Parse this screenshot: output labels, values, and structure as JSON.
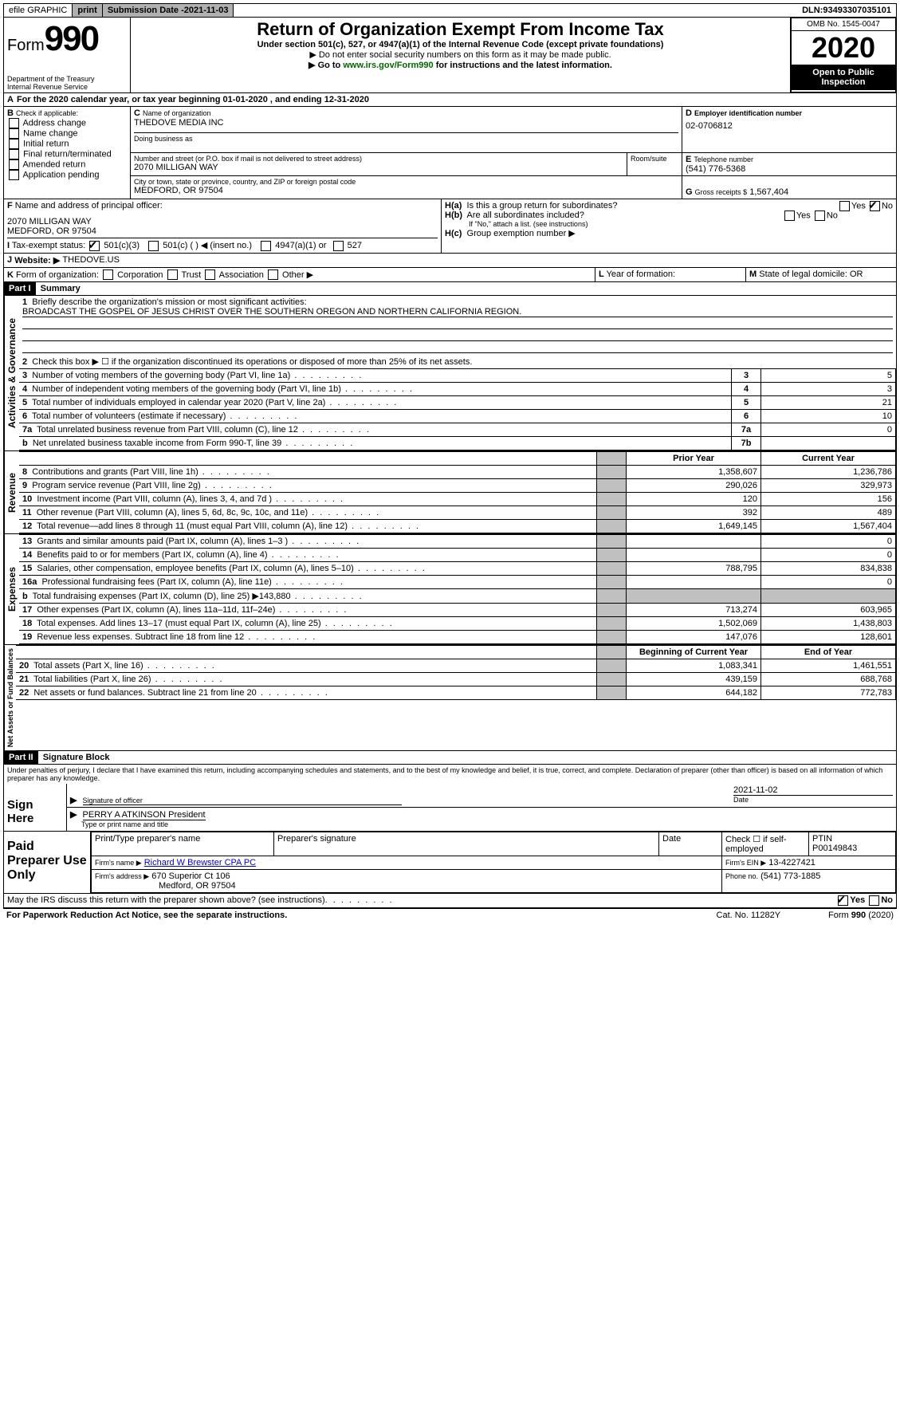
{
  "topbar": {
    "efile": "efile GRAPHIC",
    "print": "print",
    "subdate_label": "Submission Date - ",
    "subdate": "2021-11-03",
    "dln_label": "DLN: ",
    "dln": "93493307035101"
  },
  "header": {
    "form_word": "Form",
    "form_num": "990",
    "dept": "Department of the Treasury",
    "irs": "Internal Revenue Service",
    "title": "Return of Organization Exempt From Income Tax",
    "sub1": "Under section 501(c), 527, or 4947(a)(1) of the Internal Revenue Code (except private foundations)",
    "sub2": "▶ Do not enter social security numbers on this form as it may be made public.",
    "sub3_pre": "▶ Go to ",
    "sub3_link": "www.irs.gov/Form990",
    "sub3_post": " for instructions and the latest information.",
    "omb": "OMB No. 1545-0047",
    "year": "2020",
    "open": "Open to Public Inspection"
  },
  "A": {
    "line": "For the 2020 calendar year, or tax year beginning 01-01-2020    , and ending 12-31-2020"
  },
  "B": {
    "label": "Check if applicable:",
    "items": [
      "Address change",
      "Name change",
      "Initial return",
      "Final return/terminated",
      "Amended return",
      "Application pending"
    ]
  },
  "C": {
    "name_label": "Name of organization",
    "name": "THEDOVE MEDIA INC",
    "dba_label": "Doing business as",
    "addr_label": "Number and street (or P.O. box if mail is not delivered to street address)",
    "room_label": "Room/suite",
    "addr": "2070 MILLIGAN WAY",
    "city_label": "City or town, state or province, country, and ZIP or foreign postal code",
    "city": "MEDFORD, OR  97504"
  },
  "D": {
    "label": "Employer identification number",
    "val": "02-0706812"
  },
  "E": {
    "label": "Telephone number",
    "val": "(541) 776-5368"
  },
  "G": {
    "label": "Gross receipts $",
    "val": "1,567,404"
  },
  "F": {
    "label": "Name and address of principal officer:",
    "addr1": "2070 MILLIGAN WAY",
    "addr2": "MEDFORD, OR  97504"
  },
  "H": {
    "a": "Is this a group return for subordinates?",
    "b": "Are all subordinates included?",
    "b_note": "If \"No,\" attach a list. (see instructions)",
    "c": "Group exemption number ▶",
    "yes": "Yes",
    "no": "No"
  },
  "I": {
    "label": "Tax-exempt status:",
    "opt1": "501(c)(3)",
    "opt2": "501(c) (  )  ◀ (insert no.)",
    "opt3": "4947(a)(1) or",
    "opt4": "527"
  },
  "J": {
    "label": "Website: ▶",
    "val": "THEDOVE.US"
  },
  "K": {
    "label": "Form of organization:",
    "opts": [
      "Corporation",
      "Trust",
      "Association",
      "Other ▶"
    ]
  },
  "L": {
    "label": "Year of formation:"
  },
  "M": {
    "label": "State of legal domicile: ",
    "val": "OR"
  },
  "partI": {
    "head": "Part I",
    "title": "Summary",
    "line1_label": "Briefly describe the organization's mission or most significant activities:",
    "line1_val": "BROADCAST THE GOSPEL OF JESUS CHRIST OVER THE SOUTHERN OREGON AND NORTHERN CALIFORNIA REGION.",
    "line2": "Check this box ▶ ☐  if the organization discontinued its operations or disposed of more than 25% of its net assets.",
    "governance_rows": [
      {
        "n": "3",
        "text": "Number of voting members of the governing body (Part VI, line 1a)",
        "box": "3",
        "val": "5"
      },
      {
        "n": "4",
        "text": "Number of independent voting members of the governing body (Part VI, line 1b)",
        "box": "4",
        "val": "3"
      },
      {
        "n": "5",
        "text": "Total number of individuals employed in calendar year 2020 (Part V, line 2a)",
        "box": "5",
        "val": "21"
      },
      {
        "n": "6",
        "text": "Total number of volunteers (estimate if necessary)",
        "box": "6",
        "val": "10"
      },
      {
        "n": "7a",
        "text": "Total unrelated business revenue from Part VIII, column (C), line 12",
        "box": "7a",
        "val": "0"
      },
      {
        "n": "b",
        "text": "Net unrelated business taxable income from Form 990-T, line 39",
        "box": "7b",
        "val": ""
      }
    ],
    "col_prior": "Prior Year",
    "col_current": "Current Year",
    "revenue_rows": [
      {
        "n": "8",
        "text": "Contributions and grants (Part VIII, line 1h)",
        "p": "1,358,607",
        "c": "1,236,786"
      },
      {
        "n": "9",
        "text": "Program service revenue (Part VIII, line 2g)",
        "p": "290,026",
        "c": "329,973"
      },
      {
        "n": "10",
        "text": "Investment income (Part VIII, column (A), lines 3, 4, and 7d )",
        "p": "120",
        "c": "156"
      },
      {
        "n": "11",
        "text": "Other revenue (Part VIII, column (A), lines 5, 6d, 8c, 9c, 10c, and 11e)",
        "p": "392",
        "c": "489"
      },
      {
        "n": "12",
        "text": "Total revenue—add lines 8 through 11 (must equal Part VIII, column (A), line 12)",
        "p": "1,649,145",
        "c": "1,567,404"
      }
    ],
    "expense_rows": [
      {
        "n": "13",
        "text": "Grants and similar amounts paid (Part IX, column (A), lines 1–3 )",
        "p": "",
        "c": "0"
      },
      {
        "n": "14",
        "text": "Benefits paid to or for members (Part IX, column (A), line 4)",
        "p": "",
        "c": "0"
      },
      {
        "n": "15",
        "text": "Salaries, other compensation, employee benefits (Part IX, column (A), lines 5–10)",
        "p": "788,795",
        "c": "834,838"
      },
      {
        "n": "16a",
        "text": "Professional fundraising fees (Part IX, column (A), line 11e)",
        "p": "",
        "c": "0"
      },
      {
        "n": "b",
        "text": "Total fundraising expenses (Part IX, column (D), line 25) ▶143,880",
        "p": "grey",
        "c": "grey"
      },
      {
        "n": "17",
        "text": "Other expenses (Part IX, column (A), lines 11a–11d, 11f–24e)",
        "p": "713,274",
        "c": "603,965"
      },
      {
        "n": "18",
        "text": "Total expenses. Add lines 13–17 (must equal Part IX, column (A), line 25)",
        "p": "1,502,069",
        "c": "1,438,803"
      },
      {
        "n": "19",
        "text": "Revenue less expenses. Subtract line 18 from line 12",
        "p": "147,076",
        "c": "128,601"
      }
    ],
    "col_begin": "Beginning of Current Year",
    "col_end": "End of Year",
    "net_rows": [
      {
        "n": "20",
        "text": "Total assets (Part X, line 16)",
        "p": "1,083,341",
        "c": "1,461,551"
      },
      {
        "n": "21",
        "text": "Total liabilities (Part X, line 26)",
        "p": "439,159",
        "c": "688,768"
      },
      {
        "n": "22",
        "text": "Net assets or fund balances. Subtract line 21 from line 20",
        "p": "644,182",
        "c": "772,783"
      }
    ],
    "sections": {
      "gov": "Activities & Governance",
      "rev": "Revenue",
      "exp": "Expenses",
      "net": "Net Assets or Fund Balances"
    }
  },
  "partII": {
    "head": "Part II",
    "title": "Signature Block",
    "perjury": "Under penalties of perjury, I declare that I have examined this return, including accompanying schedules and statements, and to the best of my knowledge and belief, it is true, correct, and complete. Declaration of preparer (other than officer) is based on all information of which preparer has any knowledge.",
    "sign_here": "Sign Here",
    "sig_officer": "Signature of officer",
    "date_label": "Date",
    "date_val": "2021-11-02",
    "officer_name": "PERRY A ATKINSON  President",
    "type_name": "Type or print name and title",
    "paid": "Paid Preparer Use Only",
    "prep_name_label": "Print/Type preparer's name",
    "prep_sig_label": "Preparer's signature",
    "check_self": "Check ☐ if self-employed",
    "ptin_label": "PTIN",
    "ptin": "P00149843",
    "firm_name_label": "Firm's name    ▶",
    "firm_name": "Richard W Brewster CPA PC",
    "firm_ein_label": "Firm's EIN ▶",
    "firm_ein": "13-4227421",
    "firm_addr_label": "Firm's address ▶",
    "firm_addr1": "670 Superior Ct 106",
    "firm_addr2": "Medford, OR  97504",
    "phone_label": "Phone no.",
    "phone": "(541) 773-1885",
    "discuss": "May the IRS discuss this return with the preparer shown above? (see instructions)",
    "yes": "Yes",
    "no": "No"
  },
  "footer": {
    "left": "For Paperwork Reduction Act Notice, see the separate instructions.",
    "mid": "Cat. No. 11282Y",
    "right": "Form 990 (2020)"
  }
}
